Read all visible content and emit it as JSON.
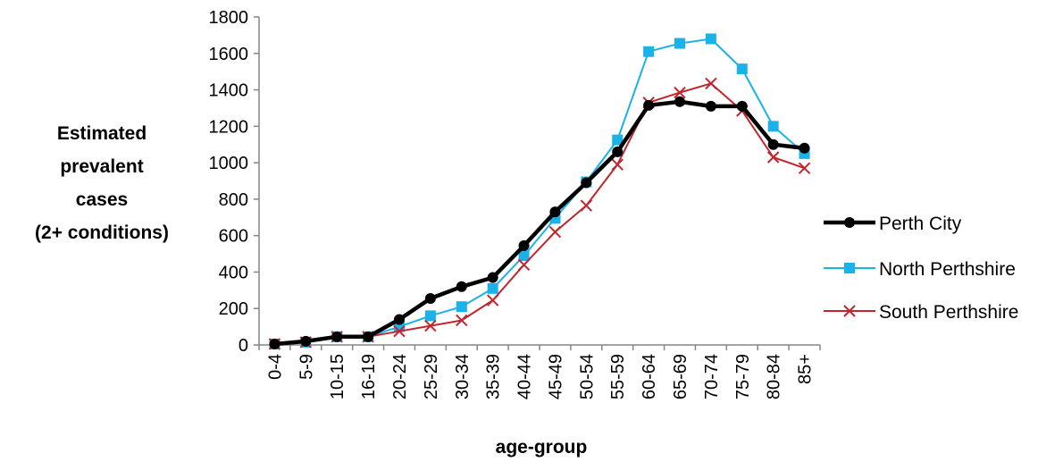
{
  "chart_data": {
    "type": "line",
    "categories": [
      "0-4",
      "5-9",
      "10-15",
      "16-19",
      "20-24",
      "25-29",
      "30-34",
      "35-39",
      "40-44",
      "45-49",
      "50-54",
      "55-59",
      "60-64",
      "65-69",
      "70-74",
      "75-79",
      "80-84",
      "85+"
    ],
    "series": [
      {
        "name": "Perth City",
        "color": "#000000",
        "marker": "circle",
        "values": [
          5,
          20,
          45,
          45,
          140,
          255,
          320,
          370,
          545,
          730,
          890,
          1060,
          1315,
          1335,
          1310,
          1310,
          1100,
          1080
        ]
      },
      {
        "name": "North Perthshire",
        "color": "#1ab2e8",
        "marker": "square",
        "values": [
          5,
          15,
          45,
          45,
          100,
          160,
          210,
          310,
          490,
          695,
          895,
          1125,
          1610,
          1655,
          1680,
          1515,
          1200,
          1050
        ]
      },
      {
        "name": "South Perthshire",
        "color": "#c0262e",
        "marker": "x",
        "values": [
          5,
          15,
          45,
          45,
          75,
          105,
          135,
          245,
          440,
          620,
          765,
          990,
          1330,
          1385,
          1435,
          1285,
          1030,
          970
        ]
      }
    ],
    "ylabel": [
      "Estimated",
      "prevalent",
      "cases",
      "(2+ conditions)"
    ],
    "xlabel": "age-group",
    "ylim": [
      0,
      1800
    ],
    "yticks": [
      "0",
      "200",
      "400",
      "600",
      "800",
      "1000",
      "1200",
      "1400",
      "1600",
      "1800"
    ],
    "grid": false,
    "legend_position": "right"
  }
}
